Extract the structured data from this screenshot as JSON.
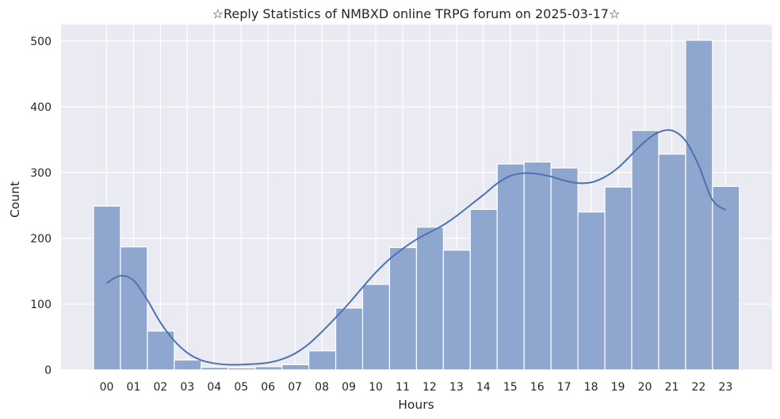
{
  "chart_data": {
    "type": "bar",
    "title": "☆Reply Statistics of NMBXD online TRPG forum on 2025-03-17☆",
    "xlabel": "Hours",
    "ylabel": "Count",
    "categories": [
      "00",
      "01",
      "02",
      "03",
      "04",
      "05",
      "06",
      "07",
      "08",
      "09",
      "10",
      "11",
      "12",
      "13",
      "14",
      "15",
      "16",
      "17",
      "18",
      "19",
      "20",
      "21",
      "22",
      "23"
    ],
    "values": [
      249,
      187,
      59,
      15,
      4,
      3,
      5,
      8,
      29,
      94,
      130,
      186,
      217,
      182,
      244,
      313,
      316,
      307,
      240,
      278,
      364,
      328,
      501,
      279
    ],
    "kde": [
      {
        "x": 0,
        "y": 132
      },
      {
        "x": 0.5,
        "y": 143
      },
      {
        "x": 1,
        "y": 136
      },
      {
        "x": 1.5,
        "y": 107
      },
      {
        "x": 2,
        "y": 72
      },
      {
        "x": 2.5,
        "y": 45
      },
      {
        "x": 3,
        "y": 26
      },
      {
        "x": 3.5,
        "y": 15
      },
      {
        "x": 4,
        "y": 10
      },
      {
        "x": 4.5,
        "y": 8
      },
      {
        "x": 5,
        "y": 8
      },
      {
        "x": 5.5,
        "y": 9
      },
      {
        "x": 6,
        "y": 11
      },
      {
        "x": 6.5,
        "y": 16
      },
      {
        "x": 7,
        "y": 25
      },
      {
        "x": 7.5,
        "y": 39
      },
      {
        "x": 8,
        "y": 58
      },
      {
        "x": 8.5,
        "y": 79
      },
      {
        "x": 9,
        "y": 101
      },
      {
        "x": 9.5,
        "y": 125
      },
      {
        "x": 10,
        "y": 148
      },
      {
        "x": 10.5,
        "y": 168
      },
      {
        "x": 11,
        "y": 184
      },
      {
        "x": 11.5,
        "y": 198
      },
      {
        "x": 12,
        "y": 209
      },
      {
        "x": 12.5,
        "y": 220
      },
      {
        "x": 13,
        "y": 234
      },
      {
        "x": 13.5,
        "y": 250
      },
      {
        "x": 14,
        "y": 266
      },
      {
        "x": 14.5,
        "y": 283
      },
      {
        "x": 15,
        "y": 295
      },
      {
        "x": 15.5,
        "y": 299
      },
      {
        "x": 16,
        "y": 298
      },
      {
        "x": 16.5,
        "y": 294
      },
      {
        "x": 17,
        "y": 288
      },
      {
        "x": 17.5,
        "y": 284
      },
      {
        "x": 18,
        "y": 285
      },
      {
        "x": 18.5,
        "y": 293
      },
      {
        "x": 19,
        "y": 307
      },
      {
        "x": 19.5,
        "y": 327
      },
      {
        "x": 20,
        "y": 347
      },
      {
        "x": 20.5,
        "y": 361
      },
      {
        "x": 21,
        "y": 364
      },
      {
        "x": 21.5,
        "y": 349
      },
      {
        "x": 22,
        "y": 311
      },
      {
        "x": 22.5,
        "y": 259
      },
      {
        "x": 23,
        "y": 243
      }
    ],
    "ylim": [
      0,
      525
    ],
    "yticks": [
      0,
      100,
      200,
      300,
      400,
      500
    ],
    "grid": true,
    "colors": {
      "bar_fill": "#8fa6cf",
      "bar_edge": "#ffffff",
      "kde_line": "#4c72b0",
      "plot_bg": "#eaeaf2",
      "grid": "#ffffff",
      "text": "#262626"
    }
  }
}
